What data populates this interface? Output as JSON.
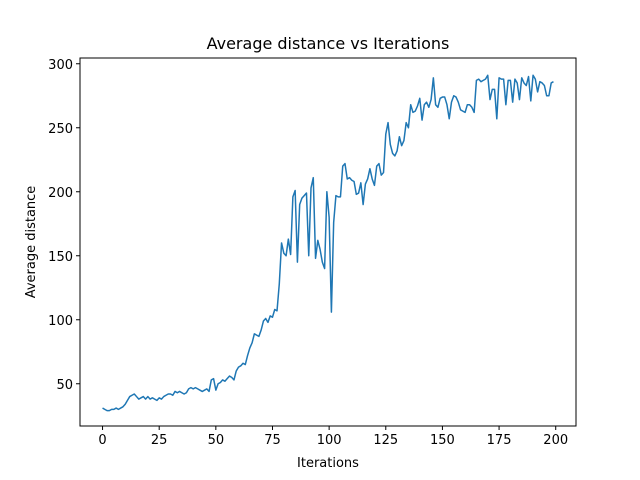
{
  "chart_data": {
    "type": "line",
    "title": "Average distance vs Iterations",
    "x_label": "Iterations",
    "y_label": "Average distance",
    "x": [
      0,
      1,
      2,
      3,
      4,
      5,
      6,
      7,
      8,
      9,
      10,
      11,
      12,
      13,
      14,
      15,
      16,
      17,
      18,
      19,
      20,
      21,
      22,
      23,
      24,
      25,
      26,
      27,
      28,
      29,
      30,
      31,
      32,
      33,
      34,
      35,
      36,
      37,
      38,
      39,
      40,
      41,
      42,
      43,
      44,
      45,
      46,
      47,
      48,
      49,
      50,
      51,
      52,
      53,
      54,
      55,
      56,
      57,
      58,
      59,
      60,
      61,
      62,
      63,
      64,
      65,
      66,
      67,
      68,
      69,
      70,
      71,
      72,
      73,
      74,
      75,
      76,
      77,
      78,
      79,
      80,
      81,
      82,
      83,
      84,
      85,
      86,
      87,
      88,
      89,
      90,
      91,
      92,
      93,
      94,
      95,
      96,
      97,
      98,
      99,
      100,
      101,
      102,
      103,
      104,
      105,
      106,
      107,
      108,
      109,
      110,
      111,
      112,
      113,
      114,
      115,
      116,
      117,
      118,
      119,
      120,
      121,
      122,
      123,
      124,
      125,
      126,
      127,
      128,
      129,
      130,
      131,
      132,
      133,
      134,
      135,
      136,
      137,
      138,
      139,
      140,
      141,
      142,
      143,
      144,
      145,
      146,
      147,
      148,
      149,
      150,
      151,
      152,
      153,
      154,
      155,
      156,
      157,
      158,
      159,
      160,
      161,
      162,
      163,
      164,
      165,
      166,
      167,
      168,
      169,
      170,
      171,
      172,
      173,
      174,
      175,
      176,
      177,
      178,
      179,
      180,
      181,
      182,
      183,
      184,
      185,
      186,
      187,
      188,
      189,
      190,
      191,
      192,
      193,
      194,
      195,
      196,
      197,
      198,
      199
    ],
    "series": [
      {
        "name": "Average distance",
        "color": "#1f77b4",
        "values": [
          31,
          30,
          29,
          29,
          30,
          30,
          31,
          30,
          31,
          32,
          34,
          37,
          40,
          41,
          42,
          40,
          38,
          39,
          40,
          38,
          40,
          38,
          39,
          38,
          37,
          39,
          38,
          40,
          41,
          42,
          42,
          41,
          44,
          43,
          44,
          43,
          42,
          43,
          46,
          47,
          46,
          47,
          46,
          45,
          44,
          45,
          46,
          44,
          53,
          54,
          45,
          50,
          51,
          53,
          52,
          54,
          56,
          55,
          53,
          60,
          63,
          64,
          66,
          65,
          72,
          78,
          82,
          89,
          88,
          87,
          92,
          99,
          101,
          98,
          103,
          102,
          108,
          107,
          128,
          160,
          152,
          150,
          163,
          151,
          196,
          201,
          145,
          190,
          195,
          197,
          199,
          150,
          203,
          211,
          148,
          162,
          155,
          145,
          140,
          200,
          180,
          106,
          176,
          197,
          196,
          196,
          220,
          222,
          210,
          211,
          209,
          208,
          198,
          199,
          207,
          190,
          206,
          210,
          218,
          210,
          205,
          220,
          222,
          213,
          215,
          245,
          254,
          237,
          230,
          228,
          232,
          243,
          236,
          240,
          254,
          250,
          268,
          262,
          263,
          267,
          273,
          256,
          268,
          270,
          266,
          272,
          289,
          268,
          266,
          273,
          274,
          274,
          268,
          257,
          270,
          275,
          274,
          270,
          264,
          263,
          262,
          268,
          268,
          266,
          262,
          287,
          288,
          286,
          287,
          288,
          291,
          272,
          280,
          280,
          257,
          289,
          288,
          288,
          268,
          287,
          287,
          270,
          288,
          285,
          272,
          289,
          285,
          283,
          290,
          271,
          291,
          288,
          278,
          286,
          285,
          283,
          275,
          275,
          285,
          286
        ]
      }
    ],
    "xlim": [
      -9.95,
      208.95
    ],
    "xticks": [
      0,
      25,
      50,
      75,
      100,
      125,
      150,
      175,
      200
    ],
    "ylim": [
      17,
      304.5
    ],
    "yticks": [
      50,
      100,
      150,
      200,
      250,
      300
    ]
  }
}
